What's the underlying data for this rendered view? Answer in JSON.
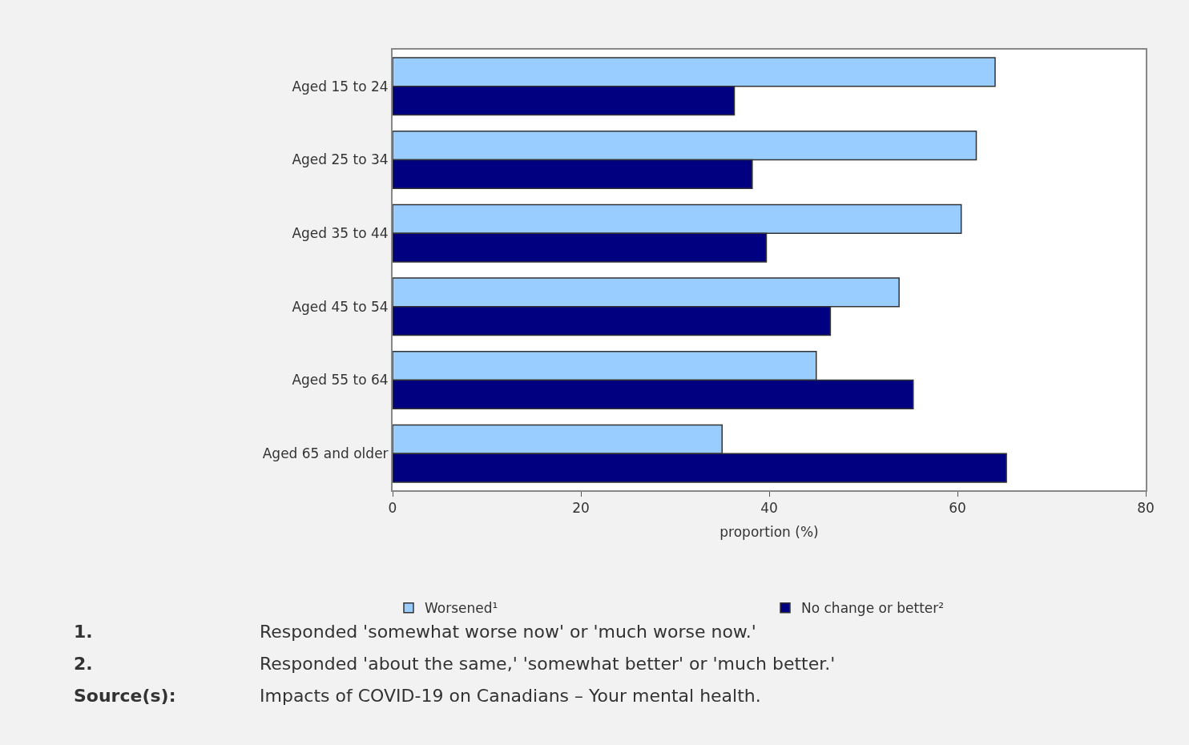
{
  "chart_data": {
    "type": "bar",
    "orientation": "horizontal",
    "categories": [
      "Aged 15 to 24",
      "Aged 25 to 34",
      "Aged 35 to 44",
      "Aged 45 to 54",
      "Aged 55 to 64",
      "Aged 65 and older"
    ],
    "series": [
      {
        "name": "Worsened¹",
        "color": "#99ccff",
        "values": [
          64,
          62,
          60.4,
          53.8,
          45,
          35
        ]
      },
      {
        "name": "No change or better²",
        "color": "#000080",
        "values": [
          36.3,
          38.2,
          39.7,
          46.5,
          55.3,
          65.2
        ]
      }
    ],
    "xlabel": "proportion (%)",
    "xlim": [
      0,
      80
    ],
    "xticks": [
      0,
      20,
      40,
      60,
      80
    ],
    "grid": false,
    "legend": "bottom",
    "annotations": [
      "1.",
      "Responded 'somewhat worse now' or 'much worse now.'",
      "2.",
      "Responded 'about the same,' 'somewhat better' or 'much better.'",
      "Source(s):",
      "Impacts of COVID-19 on Canadians – Your mental health."
    ]
  }
}
